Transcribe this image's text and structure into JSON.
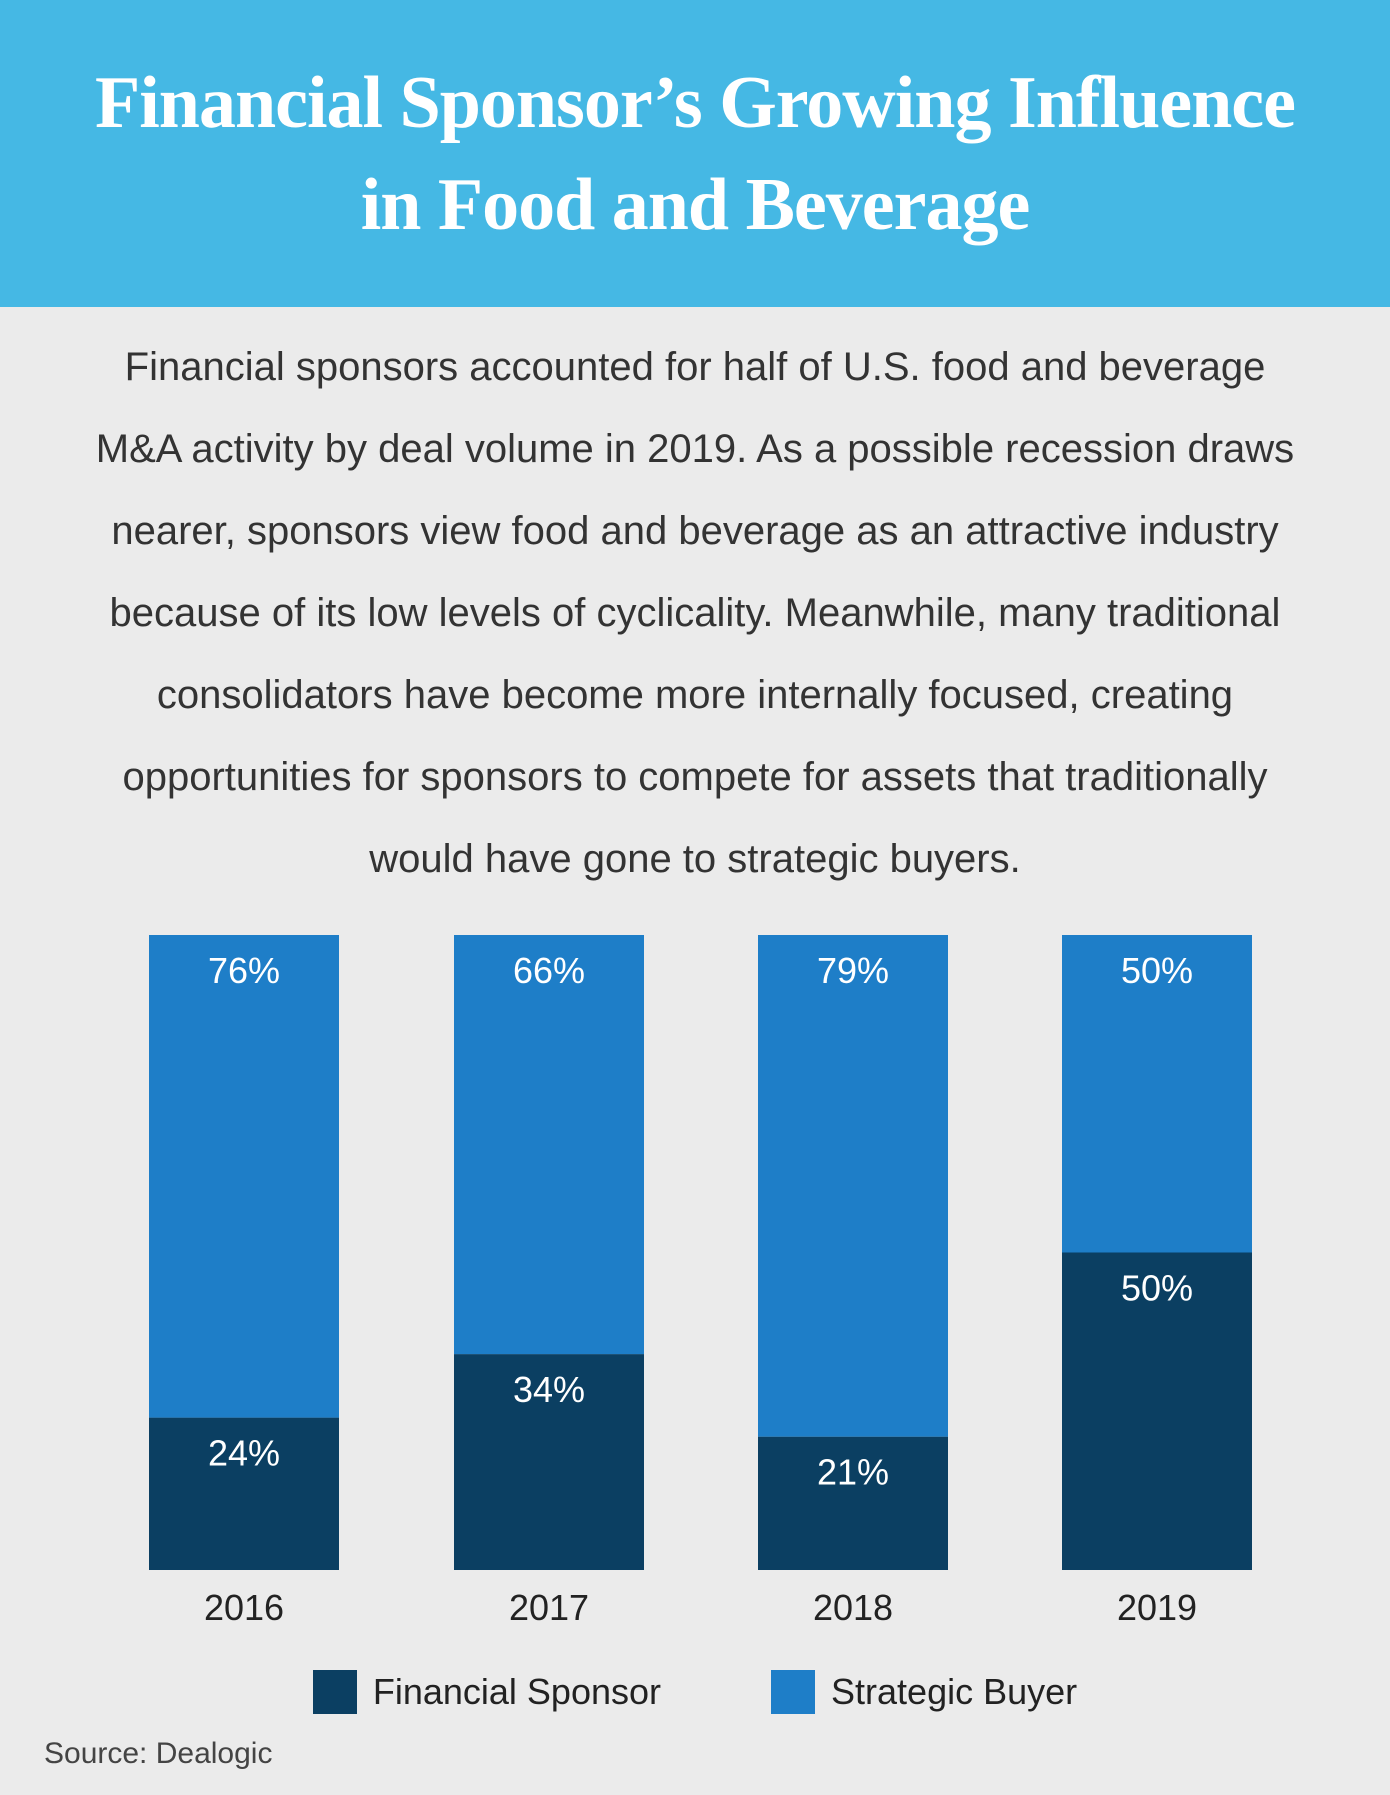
{
  "header": {
    "title_line1": "Financial Sponsor’s Growing Influence",
    "title_line2": "in Food and Beverage"
  },
  "intro": {
    "lines": [
      "Financial sponsors accounted for half of U.S. food and beverage",
      "M&A activity by deal volume in 2019. As a possible recession draws",
      "nearer, sponsors view food and beverage as an attractive industry",
      "because of its low levels of cyclicality. Meanwhile, many traditional",
      "consolidators have become more internally focused, creating",
      "opportunities for sponsors to compete for assets that traditionally",
      "would have gone to strategic buyers."
    ]
  },
  "chart_data": {
    "type": "bar",
    "stacked": true,
    "title": "Financial Sponsor’s Growing Influence in Food and Beverage",
    "categories": [
      "2016",
      "2017",
      "2018",
      "2019"
    ],
    "series": [
      {
        "name": "Financial Sponsor",
        "values": [
          24,
          34,
          21,
          50
        ],
        "labels": [
          "24%",
          "34%",
          "21%",
          "50%"
        ],
        "color": "#0b3f62"
      },
      {
        "name": "Strategic Buyer",
        "values": [
          76,
          66,
          79,
          50
        ],
        "labels": [
          "76%",
          "66%",
          "79%",
          "50%"
        ],
        "color": "#1e7ec8"
      }
    ],
    "ylim": [
      0,
      100
    ],
    "legend_position": "bottom",
    "grid": false
  },
  "source": "Source: Dealogic"
}
